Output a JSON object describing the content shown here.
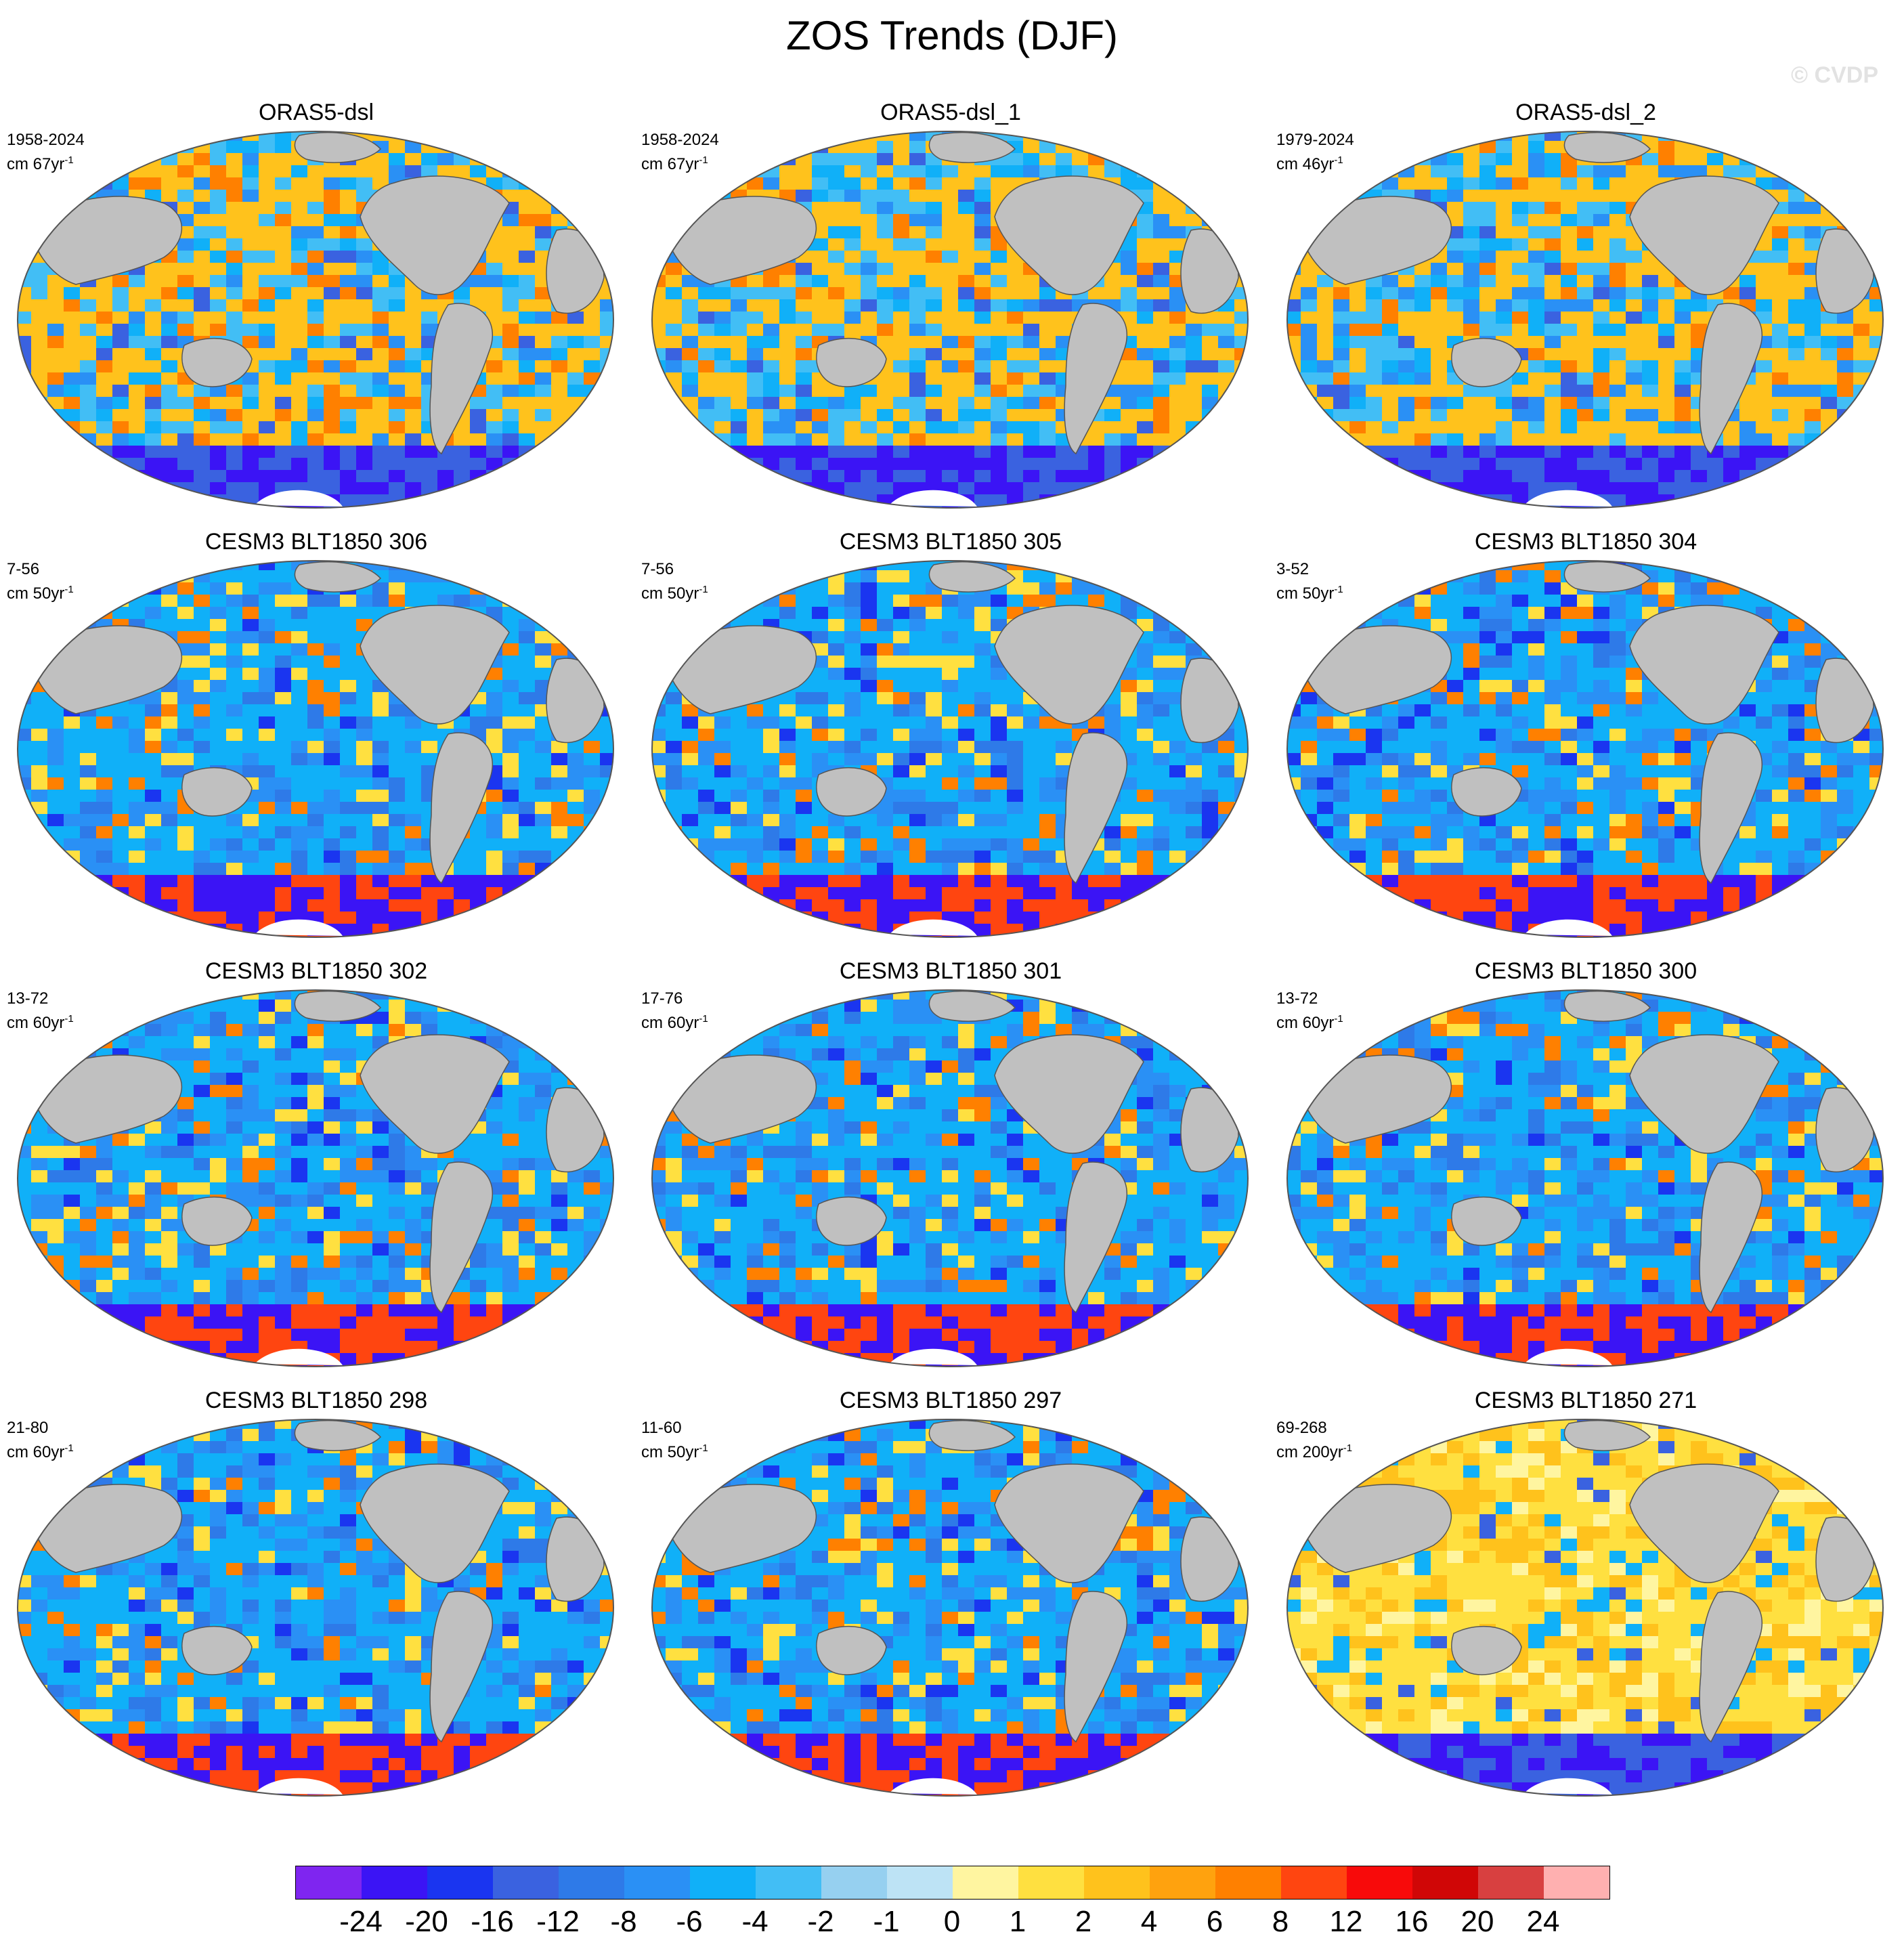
{
  "title": "ZOS Trends (DJF)",
  "watermark": "© CVDP",
  "panels": [
    {
      "title": "ORAS5-dsl",
      "period": "1958-2024",
      "units_prefix": "cm 67yr",
      "units_exp": "-1",
      "theme": "mixed-warm"
    },
    {
      "title": "ORAS5-dsl_1",
      "period": "1958-2024",
      "units_prefix": "cm 67yr",
      "units_exp": "-1",
      "theme": "mixed-warm"
    },
    {
      "title": "ORAS5-dsl_2",
      "period": "1979-2024",
      "units_prefix": "cm 46yr",
      "units_exp": "-1",
      "theme": "mixed-warm"
    },
    {
      "title": "CESM3 BLT1850 306",
      "period": "7-56",
      "units_prefix": "cm 50yr",
      "units_exp": "-1",
      "theme": "cool"
    },
    {
      "title": "CESM3 BLT1850 305",
      "period": "7-56",
      "units_prefix": "cm 50yr",
      "units_exp": "-1",
      "theme": "cool"
    },
    {
      "title": "CESM3 BLT1850 304",
      "period": "3-52",
      "units_prefix": "cm 50yr",
      "units_exp": "-1",
      "theme": "cool"
    },
    {
      "title": "CESM3 BLT1850 302",
      "period": "13-72",
      "units_prefix": "cm 60yr",
      "units_exp": "-1",
      "theme": "cool"
    },
    {
      "title": "CESM3 BLT1850 301",
      "period": "17-76",
      "units_prefix": "cm 60yr",
      "units_exp": "-1",
      "theme": "cool"
    },
    {
      "title": "CESM3 BLT1850 300",
      "period": "13-72",
      "units_prefix": "cm 60yr",
      "units_exp": "-1",
      "theme": "cool"
    },
    {
      "title": "CESM3 BLT1850 298",
      "period": "21-80",
      "units_prefix": "cm 60yr",
      "units_exp": "-1",
      "theme": "cool"
    },
    {
      "title": "CESM3 BLT1850 297",
      "period": "11-60",
      "units_prefix": "cm 50yr",
      "units_exp": "-1",
      "theme": "cool"
    },
    {
      "title": "CESM3 BLT1850 271",
      "period": "69-268",
      "units_prefix": "cm 200yr",
      "units_exp": "-1",
      "theme": "warm"
    }
  ],
  "colorbar": {
    "colors": [
      "#7f25f0",
      "#3b14f5",
      "#1a35f0",
      "#3a62e0",
      "#2e7ae8",
      "#2a90f5",
      "#10b0f8",
      "#42bef5",
      "#96d0f0",
      "#bde3f5",
      "#fff5a0",
      "#ffe040",
      "#ffc21c",
      "#ffa20e",
      "#ff8000",
      "#ff4510",
      "#f80a0a",
      "#d00606",
      "#d84040",
      "#ffb0b0"
    ],
    "labels": [
      "-24",
      "-20",
      "-16",
      "-12",
      "-8",
      "-6",
      "-4",
      "-2",
      "-1",
      "0",
      "1",
      "2",
      "4",
      "6",
      "8",
      "12",
      "16",
      "20",
      "24"
    ]
  },
  "map_colors": {
    "land": "#c0c0c0",
    "ice": "#ffffff",
    "outline": "#555555"
  }
}
